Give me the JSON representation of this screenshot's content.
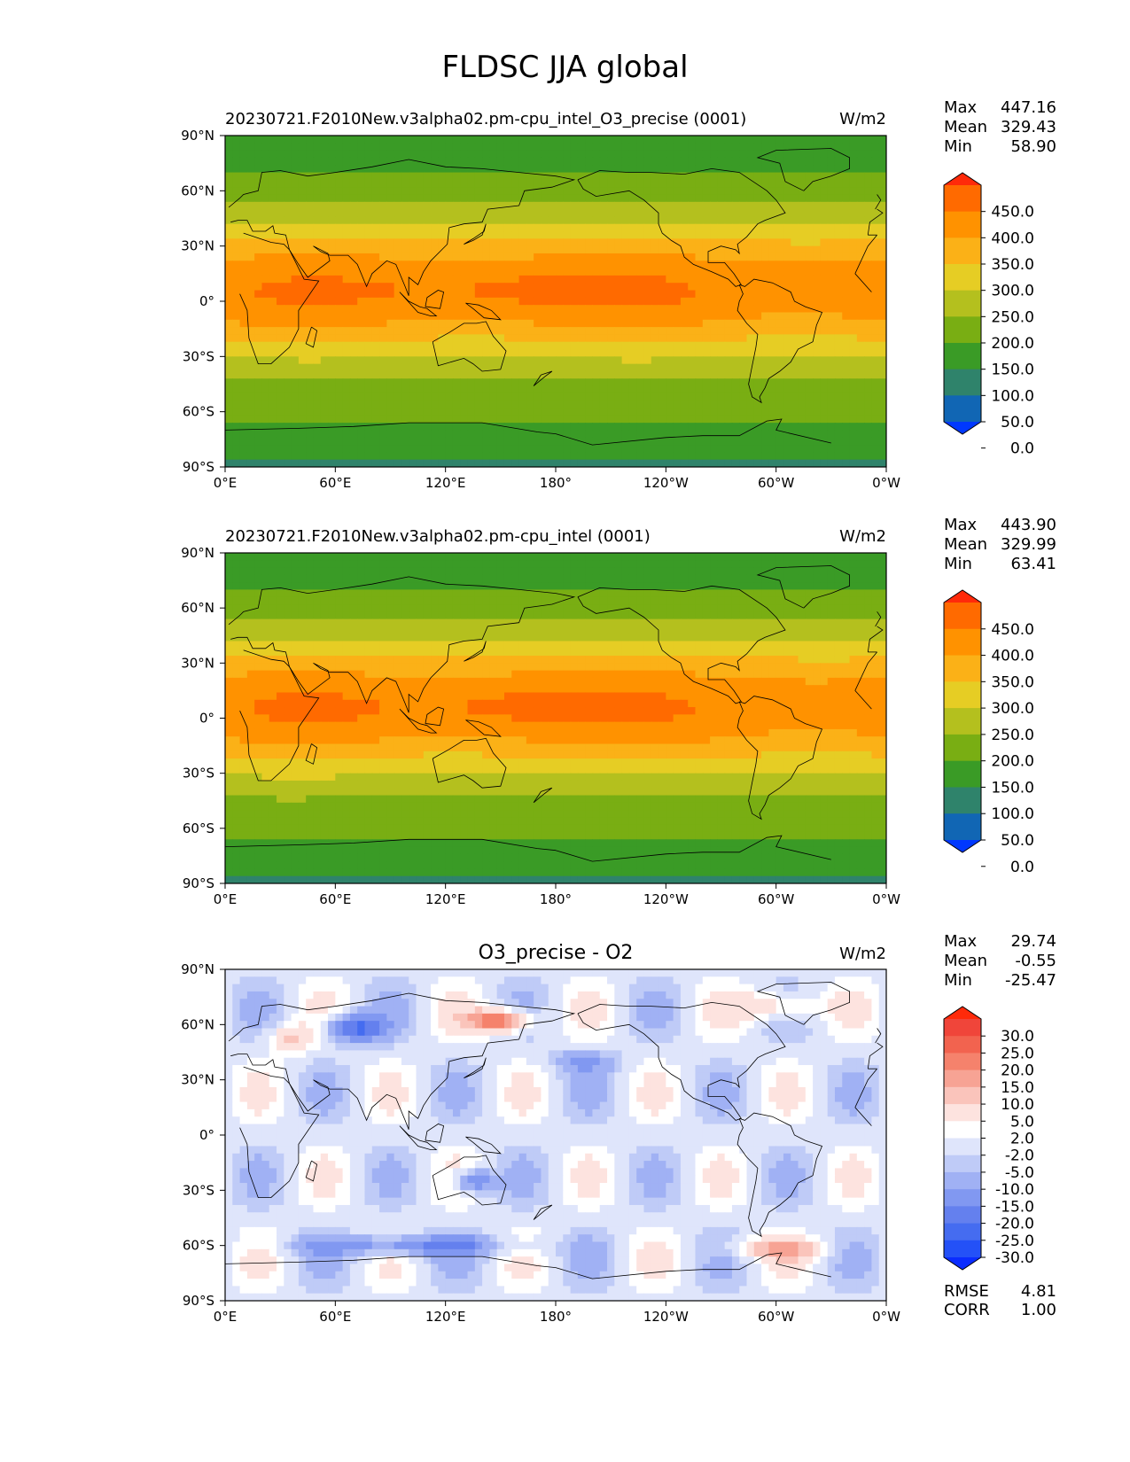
{
  "figure": {
    "title": "FLDSC JJA global"
  },
  "chart_data": [
    {
      "type": "heatmap",
      "title_left": "20230721.F2010New.v3alpha02.pm-cpu_intel_O3_precise (0001)",
      "title_center": "",
      "units": "W/m2",
      "stats": {
        "max_label": "Max",
        "max": "447.16",
        "mean_label": "Mean",
        "mean": "329.43",
        "min_label": "Min",
        "min": "58.90"
      },
      "x_ticks": [
        "0°E",
        "60°E",
        "120°E",
        "180°",
        "120°W",
        "60°W",
        "0°W"
      ],
      "y_ticks": [
        "90°N",
        "60°N",
        "30°N",
        "0°",
        "30°S",
        "60°S",
        "90°S"
      ],
      "xlim": [
        0,
        360
      ],
      "ylim": [
        -90,
        90
      ],
      "colorbar": {
        "labels": [
          "450.0",
          "400.0",
          "350.0",
          "300.0",
          "250.0",
          "200.0",
          "150.0",
          "100.0",
          "50.0",
          "0.0"
        ],
        "colors": [
          "#ff2a0a",
          "#ff6a00",
          "#ff9200",
          "#fbb117",
          "#e6cd24",
          "#b4c01e",
          "#79ae13",
          "#3a9b26",
          "#2f836b",
          "#1166b4",
          "#0038ff"
        ]
      }
    },
    {
      "type": "heatmap",
      "title_left": "20230721.F2010New.v3alpha02.pm-cpu_intel (0001)",
      "title_center": "",
      "units": "W/m2",
      "stats": {
        "max_label": "Max",
        "max": "443.90",
        "mean_label": "Mean",
        "mean": "329.99",
        "min_label": "Min",
        "min": "63.41"
      },
      "x_ticks": [
        "0°E",
        "60°E",
        "120°E",
        "180°",
        "120°W",
        "60°W",
        "0°W"
      ],
      "y_ticks": [
        "90°N",
        "60°N",
        "30°N",
        "0°",
        "30°S",
        "60°S",
        "90°S"
      ],
      "xlim": [
        0,
        360
      ],
      "ylim": [
        -90,
        90
      ],
      "colorbar": {
        "labels": [
          "450.0",
          "400.0",
          "350.0",
          "300.0",
          "250.0",
          "200.0",
          "150.0",
          "100.0",
          "50.0",
          "0.0"
        ],
        "colors": [
          "#ff2a0a",
          "#ff6a00",
          "#ff9200",
          "#fbb117",
          "#e6cd24",
          "#b4c01e",
          "#79ae13",
          "#3a9b26",
          "#2f836b",
          "#1166b4",
          "#0038ff"
        ]
      }
    },
    {
      "type": "heatmap",
      "title_left": "",
      "title_center": "O3_precise - O2",
      "units": "W/m2",
      "stats": {
        "max_label": "Max",
        "max": "29.74",
        "mean_label": "Mean",
        "mean": "-0.55",
        "min_label": "Min",
        "min": "-25.47"
      },
      "x_ticks": [
        "0°E",
        "60°E",
        "120°E",
        "180°",
        "120°W",
        "60°W",
        "0°W"
      ],
      "y_ticks": [
        "90°N",
        "60°N",
        "30°N",
        "0°",
        "30°S",
        "60°S",
        "90°S"
      ],
      "xlim": [
        0,
        360
      ],
      "ylim": [
        -90,
        90
      ],
      "colorbar": {
        "labels": [
          "30.0",
          "25.0",
          "20.0",
          "15.0",
          "10.0",
          "5.0",
          "2.0",
          "-2.0",
          "-5.0",
          "-10.0",
          "-15.0",
          "-20.0",
          "-25.0",
          "-30.0"
        ],
        "colors": [
          "#ff2a0a",
          "#f0453a",
          "#f2634f",
          "#f5826c",
          "#f7a394",
          "#fac4bb",
          "#fde3df",
          "#ffffff",
          "#dfe5fb",
          "#bfcbf7",
          "#a0b1f4",
          "#8198f1",
          "#6480ee",
          "#456cf0",
          "#2451f7",
          "#0a2cff"
        ]
      },
      "error_stats": {
        "rmse_label": "RMSE",
        "rmse": "4.81",
        "corr_label": "CORR",
        "corr": "1.00"
      }
    }
  ]
}
